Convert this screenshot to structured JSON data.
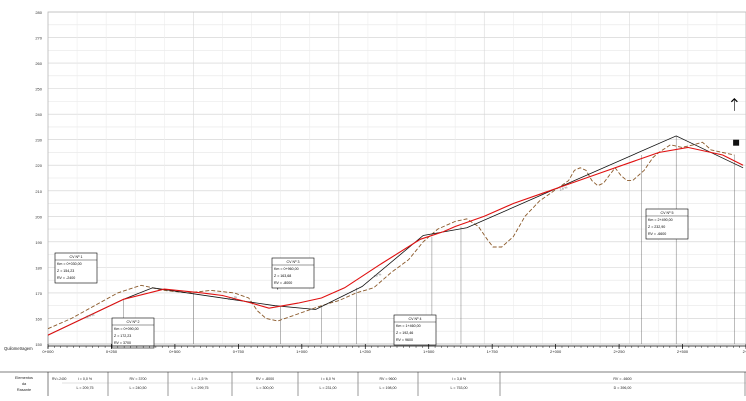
{
  "profile": {
    "y_axis_labels": [
      "150",
      "160",
      "170",
      "180",
      "190",
      "200",
      "210",
      "220",
      "230",
      "240",
      "250",
      "260",
      "270",
      "280"
    ],
    "chainage_label": "Quilometragem",
    "chainage_ticks": [
      "0+000",
      "0+250",
      "0+500",
      "0+750",
      "1+000",
      "1+250",
      "1+500",
      "1+750",
      "2+000",
      "2+250",
      "2+500",
      "2+7"
    ],
    "ground_line": [
      [
        0,
        156
      ],
      [
        40,
        160
      ],
      [
        80,
        165
      ],
      [
        120,
        170
      ],
      [
        160,
        173
      ],
      [
        200,
        171
      ],
      [
        240,
        170
      ],
      [
        280,
        171
      ],
      [
        320,
        170
      ],
      [
        345,
        168
      ],
      [
        360,
        163
      ],
      [
        375,
        160
      ],
      [
        395,
        159
      ],
      [
        420,
        161
      ],
      [
        445,
        163
      ],
      [
        470,
        165
      ],
      [
        500,
        167
      ],
      [
        530,
        170
      ],
      [
        560,
        172
      ],
      [
        590,
        178
      ],
      [
        620,
        183
      ],
      [
        645,
        190
      ],
      [
        670,
        195
      ],
      [
        700,
        198
      ],
      [
        720,
        199
      ],
      [
        740,
        196
      ],
      [
        755,
        191
      ],
      [
        765,
        188
      ],
      [
        780,
        188
      ],
      [
        800,
        192
      ],
      [
        820,
        200
      ],
      [
        845,
        206
      ],
      [
        870,
        210
      ],
      [
        895,
        214
      ],
      [
        905,
        218
      ],
      [
        915,
        219
      ],
      [
        925,
        218
      ],
      [
        935,
        214
      ],
      [
        945,
        212
      ],
      [
        955,
        213
      ],
      [
        965,
        216
      ],
      [
        975,
        219
      ],
      [
        985,
        216
      ],
      [
        995,
        214
      ],
      [
        1005,
        214
      ],
      [
        1025,
        218
      ],
      [
        1040,
        223
      ],
      [
        1050,
        225
      ],
      [
        1070,
        228
      ],
      [
        1090,
        227
      ],
      [
        1110,
        228
      ],
      [
        1125,
        229
      ],
      [
        1140,
        226
      ],
      [
        1160,
        225
      ],
      [
        1180,
        224
      ]
    ],
    "grade_line": [
      [
        0,
        153.5
      ],
      [
        130,
        167.5
      ],
      [
        200,
        171.5
      ],
      [
        265,
        170.0
      ],
      [
        300,
        169
      ],
      [
        350,
        166
      ],
      [
        380,
        164
      ],
      [
        430,
        166
      ],
      [
        470,
        168
      ],
      [
        510,
        172
      ],
      [
        570,
        181
      ],
      [
        640,
        191
      ],
      [
        680,
        194
      ],
      [
        700,
        196
      ],
      [
        750,
        200
      ],
      [
        800,
        205
      ],
      [
        850,
        209
      ],
      [
        900,
        213
      ],
      [
        950,
        217
      ],
      [
        1000,
        221
      ],
      [
        1050,
        225
      ],
      [
        1100,
        227
      ],
      [
        1160,
        224
      ],
      [
        1195,
        220
      ]
    ],
    "tangent_line": [
      [
        0,
        153.5
      ],
      [
        130,
        167.5
      ],
      [
        180,
        172.0
      ],
      [
        390,
        165
      ],
      [
        460,
        163.5
      ],
      [
        540,
        172.5
      ],
      [
        645,
        192.5
      ],
      [
        720,
        195.5
      ],
      [
        1080,
        231.5
      ],
      [
        1195,
        219
      ]
    ],
    "curves": [
      {
        "id": "cv1",
        "lines": [
          "CV Nº 1",
          "Km = 0+030,00",
          "Z   =   154,23",
          "RV  =   -2400"
        ]
      },
      {
        "id": "cv2",
        "lines": [
          "CV Nº 2",
          "Km = 0+090,00",
          "Z   =   172,23",
          "RV  =   3700"
        ]
      },
      {
        "id": "cv3",
        "lines": [
          "CV Nº 3",
          "Km = 0+960,00",
          "Z   =   163,68",
          "RV  =   -8000"
        ]
      },
      {
        "id": "cv4",
        "lines": [
          "CV Nº 4",
          "Km = 1+460,00",
          "Z   =   192,46",
          "RV  =   9600"
        ]
      },
      {
        "id": "cv5",
        "lines": [
          "CV Nº 5",
          "Km = 2+490,00",
          "Z   =   232,90",
          "RV  =   -6600"
        ]
      }
    ],
    "grade_labels": [
      "-3,0 %",
      "-1,5 %",
      "4,8 %",
      "3,8 %"
    ],
    "bottom_label_lines": [
      "Elementos",
      "da",
      "Rasante"
    ],
    "bottom_cells": [
      {
        "a": "i = 0,0 %",
        "b": "L = 209,75"
      },
      {
        "a": "RV = 3700",
        "b": "L = 240,50"
      },
      {
        "a": "i = -1,5 %",
        "b": "L = 299,75"
      },
      {
        "a": "RV = -8000",
        "b": "L = 300,00"
      },
      {
        "a": "i = 6,0 %",
        "b": "L = 231,00"
      },
      {
        "a": "RV = 9600",
        "b": "L = 198,00"
      },
      {
        "a": "i = 3,8 %",
        "b": "L = 753,00"
      },
      {
        "a": "RV = -6600",
        "b": "D = 396,00"
      }
    ],
    "bottom_first": "RV=-2400"
  }
}
